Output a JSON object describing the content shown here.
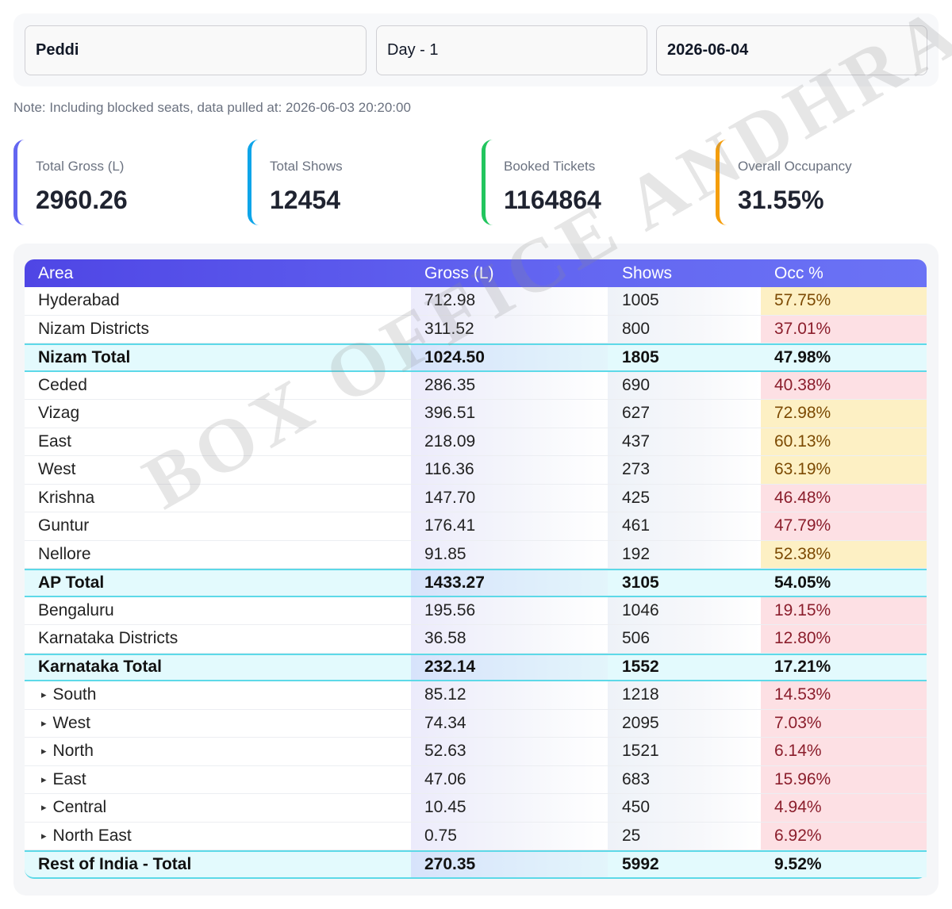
{
  "filters": {
    "movie": "Peddi",
    "day": "Day - 1",
    "date": "2026-06-04"
  },
  "note": "Note: Including blocked seats, data pulled at: 2026-06-03 20:20:00",
  "cards": [
    {
      "label": "Total Gross (L)",
      "value": "2960.26",
      "color": "#6366f1"
    },
    {
      "label": "Total Shows",
      "value": "12454",
      "color": "#0ea5e9"
    },
    {
      "label": "Booked Tickets",
      "value": "1164864",
      "color": "#22c55e"
    },
    {
      "label": "Overall Occupancy",
      "value": "31.55%",
      "color": "#f59e0b"
    }
  ],
  "table": {
    "headers": {
      "area": "Area",
      "gross": "Gross (L)",
      "shows": "Shows",
      "occ": "Occ %"
    },
    "rows": [
      {
        "area": "Hyderabad",
        "gross": "712.98",
        "shows": "1005",
        "occ": "57.75%",
        "level": "yellow"
      },
      {
        "area": "Nizam Districts",
        "gross": "311.52",
        "shows": "800",
        "occ": "37.01%",
        "level": "red"
      },
      {
        "area": "Nizam Total",
        "gross": "1024.50",
        "shows": "1805",
        "occ": "47.98%",
        "total": true
      },
      {
        "area": "Ceded",
        "gross": "286.35",
        "shows": "690",
        "occ": "40.38%",
        "level": "red"
      },
      {
        "area": "Vizag",
        "gross": "396.51",
        "shows": "627",
        "occ": "72.98%",
        "level": "yellow"
      },
      {
        "area": "East",
        "gross": "218.09",
        "shows": "437",
        "occ": "60.13%",
        "level": "yellow"
      },
      {
        "area": "West",
        "gross": "116.36",
        "shows": "273",
        "occ": "63.19%",
        "level": "yellow"
      },
      {
        "area": "Krishna",
        "gross": "147.70",
        "shows": "425",
        "occ": "46.48%",
        "level": "red"
      },
      {
        "area": "Guntur",
        "gross": "176.41",
        "shows": "461",
        "occ": "47.79%",
        "level": "red"
      },
      {
        "area": "Nellore",
        "gross": "91.85",
        "shows": "192",
        "occ": "52.38%",
        "level": "yellow"
      },
      {
        "area": "AP Total",
        "gross": "1433.27",
        "shows": "3105",
        "occ": "54.05%",
        "total": true
      },
      {
        "area": "Bengaluru",
        "gross": "195.56",
        "shows": "1046",
        "occ": "19.15%",
        "level": "red"
      },
      {
        "area": "Karnataka Districts",
        "gross": "36.58",
        "shows": "506",
        "occ": "12.80%",
        "level": "red"
      },
      {
        "area": "Karnataka Total",
        "gross": "232.14",
        "shows": "1552",
        "occ": "17.21%",
        "total": true
      },
      {
        "area": "South",
        "gross": "85.12",
        "shows": "1218",
        "occ": "14.53%",
        "level": "red",
        "sub": true
      },
      {
        "area": "West",
        "gross": "74.34",
        "shows": "2095",
        "occ": "7.03%",
        "level": "red",
        "sub": true
      },
      {
        "area": "North",
        "gross": "52.63",
        "shows": "1521",
        "occ": "6.14%",
        "level": "red",
        "sub": true
      },
      {
        "area": "East",
        "gross": "47.06",
        "shows": "683",
        "occ": "15.96%",
        "level": "red",
        "sub": true
      },
      {
        "area": "Central",
        "gross": "10.45",
        "shows": "450",
        "occ": "4.94%",
        "level": "red",
        "sub": true
      },
      {
        "area": "North East",
        "gross": "0.75",
        "shows": "25",
        "occ": "6.92%",
        "level": "red",
        "sub": true
      },
      {
        "area": "Rest of India - Total",
        "gross": "270.35",
        "shows": "5992",
        "occ": "9.52%",
        "total": true
      }
    ]
  },
  "watermark": "BOX OFFICE ANDHRA"
}
